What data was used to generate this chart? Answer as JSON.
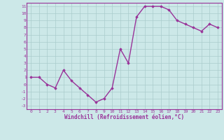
{
  "x": [
    0,
    1,
    2,
    3,
    4,
    5,
    6,
    7,
    8,
    9,
    10,
    11,
    12,
    13,
    14,
    15,
    16,
    17,
    18,
    19,
    20,
    21,
    22,
    23
  ],
  "y": [
    1,
    1,
    0,
    -0.5,
    2,
    0.5,
    -0.5,
    -1.5,
    -2.5,
    -2,
    -0.5,
    5,
    3,
    9.5,
    11,
    11,
    11,
    10.5,
    9,
    8.5,
    8,
    7.5,
    8.5,
    8
  ],
  "line_color": "#993399",
  "marker": "D",
  "marker_size": 1.8,
  "bg_color": "#cce8e8",
  "grid_color": "#aacccc",
  "xlabel": "Windchill (Refroidissement éolien,°C)",
  "xlabel_color": "#993399",
  "tick_color": "#993399",
  "ylim": [
    -3.5,
    11.5
  ],
  "xlim": [
    -0.5,
    23.5
  ],
  "yticks": [
    -3,
    -2,
    -1,
    0,
    1,
    2,
    3,
    4,
    5,
    6,
    7,
    8,
    9,
    10,
    11
  ],
  "xticks": [
    0,
    1,
    2,
    3,
    4,
    5,
    6,
    7,
    8,
    9,
    10,
    11,
    12,
    13,
    14,
    15,
    16,
    17,
    18,
    19,
    20,
    21,
    22,
    23
  ],
  "line_width": 1.0,
  "spine_color": "#993399"
}
